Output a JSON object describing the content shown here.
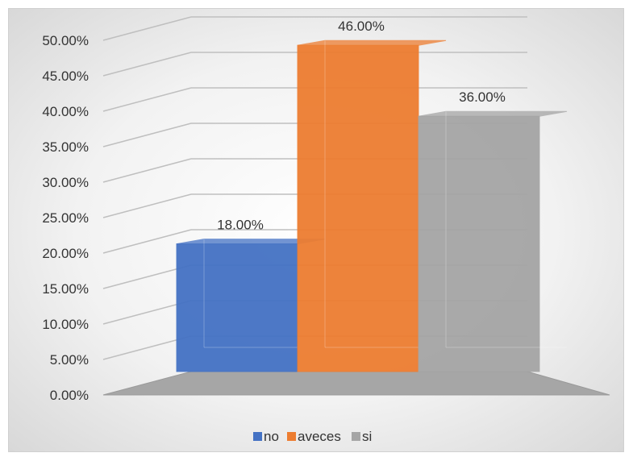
{
  "chart_data": {
    "type": "bar",
    "style": "3d-column",
    "categories": [
      "no",
      "aveces",
      "si"
    ],
    "values": [
      18.0,
      46.0,
      36.0
    ],
    "data_labels": [
      "18.00%",
      "46.00%",
      "36.00%"
    ],
    "y_tick_labels": [
      "0.00%",
      "5.00%",
      "10.00%",
      "15.00%",
      "20.00%",
      "25.00%",
      "30.00%",
      "35.00%",
      "40.00%",
      "45.00%",
      "50.00%"
    ],
    "ylim": [
      0,
      50
    ],
    "y_unit": "%",
    "grid": true,
    "legend": {
      "position": "bottom",
      "entries": [
        "no",
        "aveces",
        "si"
      ]
    },
    "colors": [
      "#4472c4",
      "#ed7d31",
      "#a5a5a5"
    ],
    "title": "",
    "xlabel": "",
    "ylabel": ""
  }
}
